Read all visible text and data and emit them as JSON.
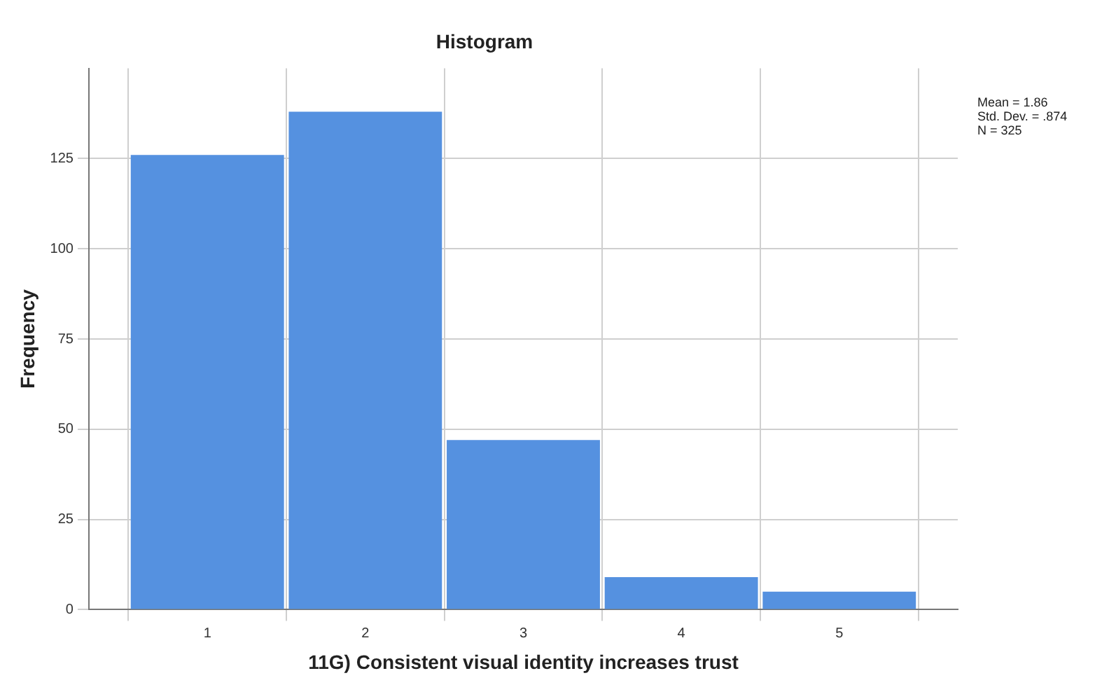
{
  "chart_data": {
    "type": "histogram",
    "title": "Histogram",
    "xlabel": "11G) Consistent visual identity increases trust",
    "ylabel": "Frequency",
    "bins": [
      0.5,
      1.5,
      2.5,
      3.5,
      4.5,
      5.5
    ],
    "values": [
      126,
      138,
      47,
      9,
      5
    ],
    "color": "#5591e0",
    "xlim": [
      0.25,
      5.75
    ],
    "xticks": [
      1,
      2,
      3,
      4,
      5
    ],
    "ylim": [
      0,
      150
    ],
    "yticks": [
      0,
      25,
      50,
      75,
      100,
      125
    ],
    "grid": true,
    "legend": false,
    "annotations": [
      "Mean = 1.86",
      "Std. Dev. = .874",
      "N = 325"
    ]
  }
}
